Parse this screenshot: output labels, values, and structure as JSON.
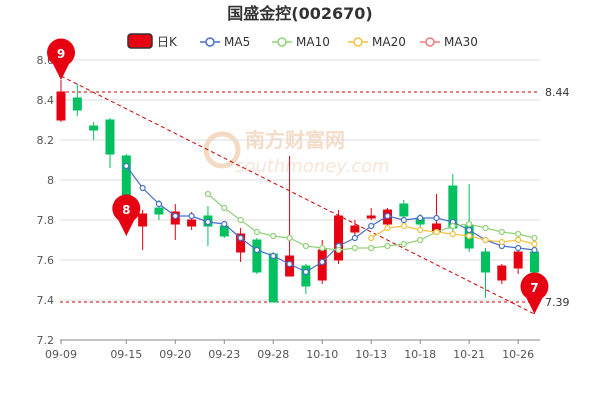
{
  "chart_data": {
    "type": "candlestick",
    "title": "国盛金控(002670)",
    "colors": {
      "up": "#e60012",
      "down": "#00c060",
      "ref": "#cc0000",
      "grid": "#dddddd"
    },
    "legend": {
      "kline_label": "日K",
      "ma": [
        {
          "name": "MA5",
          "color": "#4a6fc9"
        },
        {
          "name": "MA10",
          "color": "#93d07a"
        },
        {
          "name": "MA20",
          "color": "#f5c242"
        },
        {
          "name": "MA30",
          "color": "#f07a7a"
        }
      ]
    },
    "watermark": {
      "cn": "南方财富网",
      "url": "southmoney.com"
    },
    "ylim": [
      7.2,
      8.6
    ],
    "yticks": [
      "7.2",
      "7.4",
      "7.6",
      "7.8",
      "8",
      "8.2",
      "8.4",
      "8.6"
    ],
    "xtick_labels": [
      {
        "i": 0,
        "label": "09-09"
      },
      {
        "i": 4,
        "label": "09-15"
      },
      {
        "i": 7,
        "label": "09-20"
      },
      {
        "i": 10,
        "label": "09-23"
      },
      {
        "i": 13,
        "label": "09-28"
      },
      {
        "i": 16,
        "label": "10-10"
      },
      {
        "i": 19,
        "label": "10-13"
      },
      {
        "i": 22,
        "label": "10-18"
      },
      {
        "i": 25,
        "label": "10-21"
      },
      {
        "i": 28,
        "label": "10-26"
      }
    ],
    "candles": [
      {
        "o": 8.3,
        "c": 8.44,
        "h": 8.5,
        "l": 8.29
      },
      {
        "o": 8.41,
        "c": 8.35,
        "h": 8.48,
        "l": 8.32
      },
      {
        "o": 8.27,
        "c": 8.25,
        "h": 8.29,
        "l": 8.2
      },
      {
        "o": 8.3,
        "c": 8.13,
        "h": 8.31,
        "l": 8.06
      },
      {
        "o": 8.12,
        "c": 7.77,
        "h": 8.13,
        "l": 7.72
      },
      {
        "o": 7.77,
        "c": 7.83,
        "h": 7.85,
        "l": 7.65
      },
      {
        "o": 7.86,
        "c": 7.83,
        "h": 7.9,
        "l": 7.8
      },
      {
        "o": 7.78,
        "c": 7.84,
        "h": 7.88,
        "l": 7.7
      },
      {
        "o": 7.77,
        "c": 7.8,
        "h": 7.84,
        "l": 7.75
      },
      {
        "o": 7.82,
        "c": 7.77,
        "h": 7.87,
        "l": 7.67
      },
      {
        "o": 7.77,
        "c": 7.72,
        "h": 7.78,
        "l": 7.71
      },
      {
        "o": 7.64,
        "c": 7.73,
        "h": 7.76,
        "l": 7.59
      },
      {
        "o": 7.7,
        "c": 7.54,
        "h": 7.71,
        "l": 7.53
      },
      {
        "o": 7.63,
        "c": 7.39,
        "h": 7.64,
        "l": 7.39
      },
      {
        "o": 7.52,
        "c": 7.62,
        "h": 8.12,
        "l": 7.52
      },
      {
        "o": 7.57,
        "c": 7.47,
        "h": 7.58,
        "l": 7.43
      },
      {
        "o": 7.5,
        "c": 7.65,
        "h": 7.7,
        "l": 7.48
      },
      {
        "o": 7.6,
        "c": 7.82,
        "h": 7.85,
        "l": 7.58
      },
      {
        "o": 7.74,
        "c": 7.77,
        "h": 7.8,
        "l": 7.71
      },
      {
        "o": 7.81,
        "c": 7.82,
        "h": 7.86,
        "l": 7.8
      },
      {
        "o": 7.78,
        "c": 7.85,
        "h": 7.86,
        "l": 7.77
      },
      {
        "o": 7.88,
        "c": 7.82,
        "h": 7.9,
        "l": 7.81
      },
      {
        "o": 7.81,
        "c": 7.78,
        "h": 7.83,
        "l": 7.74
      },
      {
        "o": 7.74,
        "c": 7.78,
        "h": 7.93,
        "l": 7.73
      },
      {
        "o": 7.97,
        "c": 7.76,
        "h": 8.03,
        "l": 7.74
      },
      {
        "o": 7.77,
        "c": 7.66,
        "h": 7.98,
        "l": 7.64
      },
      {
        "o": 7.64,
        "c": 7.54,
        "h": 7.66,
        "l": 7.41
      },
      {
        "o": 7.5,
        "c": 7.57,
        "h": 7.58,
        "l": 7.48
      },
      {
        "o": 7.56,
        "c": 7.64,
        "h": 7.65,
        "l": 7.53
      },
      {
        "o": 7.64,
        "c": 7.54,
        "h": 7.66,
        "l": 7.33
      }
    ],
    "ma_lines": [
      {
        "name": "MA5",
        "start": 4,
        "values": [
          8.07,
          7.96,
          7.88,
          7.82,
          7.82,
          7.79,
          7.78,
          7.71,
          7.65,
          7.62,
          7.58,
          7.54,
          7.59,
          7.67,
          7.71,
          7.77,
          7.82,
          7.8,
          7.81,
          7.81,
          7.79,
          7.75,
          7.7,
          7.67,
          7.66,
          7.65
        ]
      },
      {
        "name": "MA10",
        "start": 9,
        "values": [
          7.93,
          7.86,
          7.8,
          7.74,
          7.72,
          7.71,
          7.67,
          7.66,
          7.65,
          7.66,
          7.66,
          7.67,
          7.68,
          7.7,
          7.74,
          7.77,
          7.78,
          7.76,
          7.74,
          7.73,
          7.71
        ]
      },
      {
        "name": "MA20",
        "start": 19,
        "values": [
          7.71,
          7.76,
          7.77,
          7.75,
          7.74,
          7.73,
          7.72,
          7.7,
          7.69,
          7.7,
          7.68
        ]
      }
    ],
    "ref_lines": [
      {
        "label": "8.44",
        "value": 8.44
      },
      {
        "label": "7.39",
        "value": 7.39
      }
    ],
    "trend_line": {
      "from": [
        0,
        8.52
      ],
      "to": [
        29,
        7.33
      ]
    },
    "annotations": [
      {
        "text": "9",
        "i": 0,
        "value": 8.5,
        "dir": "down"
      },
      {
        "text": "8",
        "i": 4,
        "value": 7.72,
        "dir": "up"
      },
      {
        "text": "7",
        "i": 29,
        "value": 7.33,
        "dir": "up"
      }
    ]
  }
}
